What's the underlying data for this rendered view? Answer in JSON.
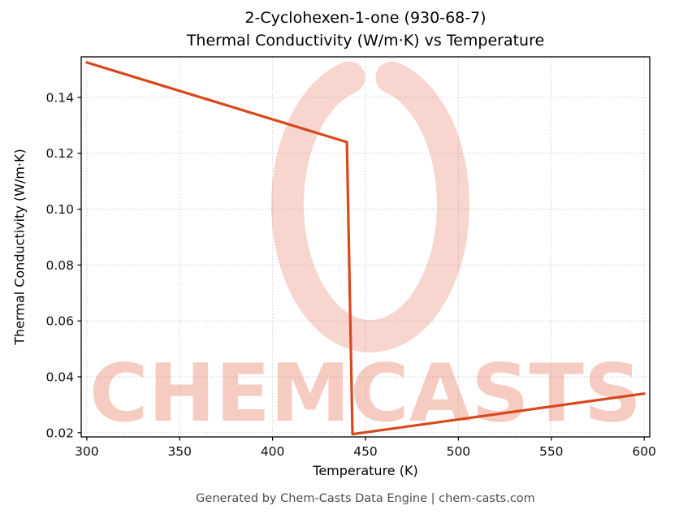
{
  "title": {
    "line1": "2-Cyclohexen-1-one (930-68-7)",
    "line2": "Thermal Conductivity (W/m·K) vs Temperature"
  },
  "footer": "Generated by Chem-Casts Data Engine | chem-casts.com",
  "watermark": {
    "text": "CHEMCASTS",
    "color": "#e2593a"
  },
  "chart_data": {
    "type": "line",
    "title": "2-Cyclohexen-1-one (930-68-7) Thermal Conductivity (W/m·K) vs Temperature",
    "xlabel": "Temperature (K)",
    "ylabel": "Thermal Conductivity (W/m·K)",
    "xlim": [
      297,
      603
    ],
    "ylim": [
      0.0185,
      0.1545
    ],
    "x_ticks": [
      300,
      350,
      400,
      450,
      500,
      550,
      600
    ],
    "y_ticks": [
      0.02,
      0.04,
      0.06,
      0.08,
      0.1,
      0.12,
      0.14
    ],
    "grid": true,
    "line_color": "#d9481c",
    "series": [
      {
        "name": "thermal-conductivity",
        "points": [
          [
            300,
            0.1525
          ],
          [
            440,
            0.124
          ],
          [
            443,
            0.0195
          ],
          [
            600,
            0.034
          ]
        ]
      }
    ]
  }
}
